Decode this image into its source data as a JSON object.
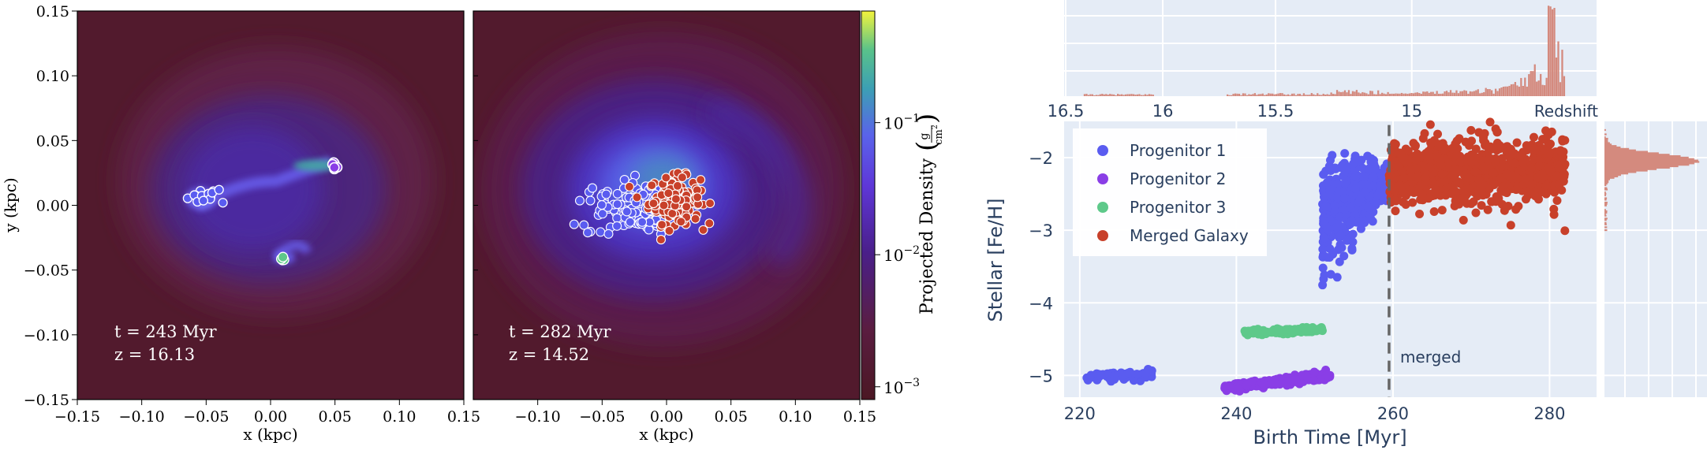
{
  "colors": {
    "bg_dark": "#5a1d2e",
    "gas_mid": "#4a2a9c",
    "gas_bright": "#6a5cf0",
    "gas_green": "#39a98f",
    "plotly_bg": "#e5ecf6",
    "prog1": "#5a5cf0",
    "prog2": "#8a3ee6",
    "prog3": "#5ec98a",
    "merged": "#c8402a",
    "hist": "#d48a7e",
    "merge_line": "#666666",
    "axis_text": "#2a3f5f"
  },
  "chart_data": [
    {
      "id": "panel-left",
      "type": "heatmap",
      "title": "",
      "xlabel": "x  (kpc)",
      "ylabel": "y  (kpc)",
      "xlim": [
        -0.15,
        0.15
      ],
      "ylim": [
        -0.15,
        0.15
      ],
      "xticks": [
        "−0.15",
        "−0.10",
        "−0.05",
        "0.00",
        "0.05",
        "0.10",
        "0.15"
      ],
      "yticks": [
        "0.15",
        "0.10",
        "0.05",
        "0.00",
        "−0.05",
        "−0.10",
        "−0.15"
      ],
      "annotation_time": "t = 243 Myr",
      "annotation_redshift": "z = 16.13",
      "markers": [
        {
          "x": -0.052,
          "y": 0.007,
          "series": "Progenitor 1"
        },
        {
          "x": 0.05,
          "y": 0.032,
          "series": "Progenitor 2"
        },
        {
          "x": 0.01,
          "y": -0.042,
          "series": "Progenitor 3"
        }
      ]
    },
    {
      "id": "panel-right",
      "type": "heatmap",
      "title": "",
      "xlabel": "x  (kpc)",
      "xlim": [
        -0.15,
        0.15
      ],
      "ylim": [
        -0.15,
        0.15
      ],
      "xticks": [
        "−0.10",
        "−0.05",
        "0.00",
        "0.05",
        "0.10",
        "0.15"
      ],
      "annotation_time": "t = 282 Myr",
      "annotation_redshift": "z = 14.52",
      "markers_center": {
        "x": 0.0,
        "y": -0.002
      }
    },
    {
      "id": "colorbar",
      "type": "colorbar",
      "label": "Projected Density",
      "unit_num": "g",
      "unit_den": "cm",
      "unit_exp": "2",
      "scale": "log",
      "range": [
        0.0008,
        0.7
      ],
      "ticks": [
        {
          "value": 0.1,
          "mantissa": "10",
          "exponent": "−1"
        },
        {
          "value": 0.01,
          "mantissa": "10",
          "exponent": "−2"
        },
        {
          "value": 0.001,
          "mantissa": "10",
          "exponent": "−3"
        }
      ]
    },
    {
      "id": "scatter-main",
      "type": "scatter",
      "xlabel": "Birth Time [Myr]",
      "ylabel": "Stellar [Fe/H]",
      "xlim": [
        218,
        286
      ],
      "ylim": [
        -5.3,
        -1.5
      ],
      "xticks": [
        220,
        240,
        260,
        280
      ],
      "yticks": [
        -2,
        -3,
        -4,
        -5
      ],
      "merge_time": 259.5,
      "merge_label": "merged",
      "series": [
        {
          "name": "Progenitor 1",
          "color": "#5a5cf0",
          "segments": [
            {
              "x0": 220.5,
              "x1": 229.5,
              "y0": -5.04,
              "y1": -4.98,
              "spread": 0.03,
              "n": 70
            },
            {
              "x0": 251,
              "x1": 259.5,
              "y0": -2.9,
              "y1": -2.35,
              "spread": 0.45,
              "n": 520
            }
          ]
        },
        {
          "name": "Progenitor 2",
          "color": "#8a3ee6",
          "segments": [
            {
              "x0": 238.5,
              "x1": 252,
              "y0": -5.17,
              "y1": -5.0,
              "spread": 0.03,
              "n": 160
            }
          ]
        },
        {
          "name": "Progenitor 3",
          "color": "#5ec98a",
          "segments": [
            {
              "x0": 241,
              "x1": 251,
              "y0": -4.41,
              "y1": -4.37,
              "spread": 0.02,
              "n": 110
            }
          ]
        },
        {
          "name": "Merged Galaxy",
          "color": "#c8402a",
          "segments": [
            {
              "x0": 259.5,
              "x1": 282,
              "y0": -2.2,
              "y1": -2.2,
              "spread": 0.22,
              "n": 900
            }
          ]
        }
      ],
      "legend": [
        "Progenitor 1",
        "Progenitor 2",
        "Progenitor 3",
        "Merged Galaxy"
      ],
      "legend_position": "top-left"
    },
    {
      "id": "hist-top",
      "type": "bar",
      "xaxis_title": "Redshift",
      "xticks": [
        "16.5",
        "16",
        "15.5",
        "15"
      ],
      "tick_birthtimes": [
        218.2,
        230.6,
        245.0,
        262.4
      ],
      "peak_birthtime": 280,
      "description": "star formation histogram vs birth time"
    },
    {
      "id": "hist-right",
      "type": "bar",
      "orientation": "horizontal",
      "peak_feh": -2.05,
      "description": "[Fe/H] distribution"
    }
  ]
}
